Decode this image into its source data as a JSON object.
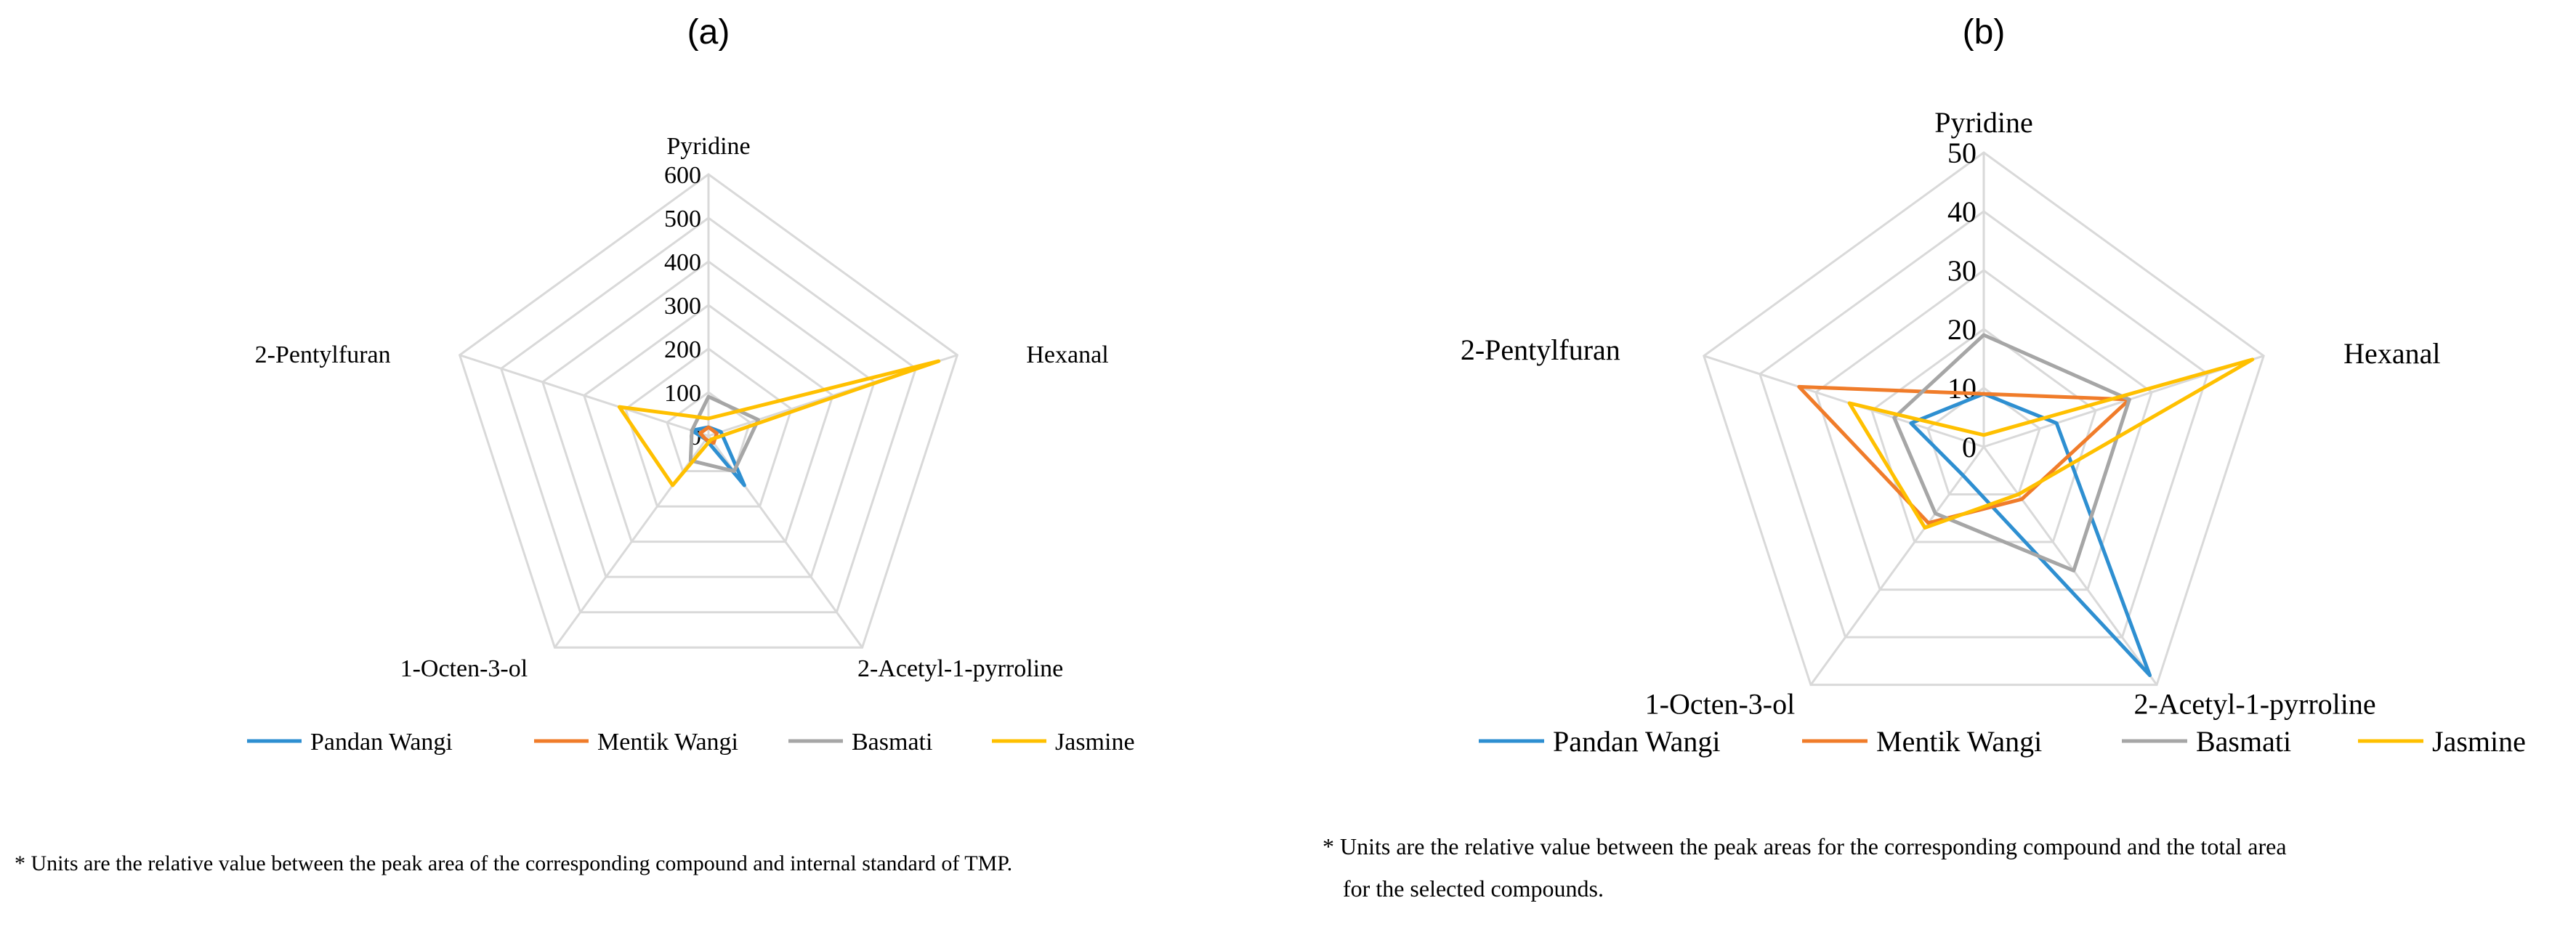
{
  "chart_data": [
    {
      "type": "radar",
      "panel_label": "(a)",
      "axes": [
        "Pyridine",
        "Hexanal",
        "2-Acetyl-1-pyrroline",
        "1-Octen-3-ol",
        "2-Pentylfuran"
      ],
      "ticks": [
        "0",
        "100",
        "200",
        "300",
        "400",
        "500",
        "600"
      ],
      "rmax": 600,
      "grid": true,
      "legend_position": "bottom",
      "series": [
        {
          "name": "Pandan Wangi",
          "color": "#2E8FD1",
          "values": [
            20,
            30,
            140,
            10,
            40
          ]
        },
        {
          "name": "Mentik Wangi",
          "color": "#F07C2A",
          "values": [
            20,
            20,
            20,
            10,
            20
          ]
        },
        {
          "name": "Basmati",
          "color": "#A6A6A6",
          "values": [
            90,
            120,
            100,
            70,
            40
          ]
        },
        {
          "name": "Jasmine",
          "color": "#FFC000",
          "values": [
            40,
            555,
            10,
            140,
            215
          ]
        }
      ],
      "footnote": "* Units are the relative value between the peak area of the corresponding compound and internal standard of TMP."
    },
    {
      "type": "radar",
      "panel_label": "(b)",
      "axes": [
        "Pyridine",
        "Hexanal",
        "2-Acetyl-1-pyrroline",
        "1-Octen-3-ol",
        "2-Pentylfuran"
      ],
      "ticks": [
        "0",
        "10",
        "20",
        "30",
        "40",
        "50"
      ],
      "rmax": 50,
      "grid": true,
      "legend_position": "bottom",
      "series": [
        {
          "name": "Pandan Wangi",
          "color": "#2E8FD1",
          "values": [
            9,
            13,
            48,
            6,
            13
          ]
        },
        {
          "name": "Mentik Wangi",
          "color": "#F07C2A",
          "values": [
            9,
            26,
            11,
            16,
            33
          ]
        },
        {
          "name": "Basmati",
          "color": "#A6A6A6",
          "values": [
            19,
            26,
            26,
            14,
            16
          ]
        },
        {
          "name": "Jasmine",
          "color": "#FFC000",
          "values": [
            2,
            48,
            10,
            17,
            24
          ]
        }
      ],
      "footnote_lines": [
        "* Units are the relative value between the peak areas for the corresponding compound and the total area",
        "for the selected compounds."
      ]
    }
  ]
}
